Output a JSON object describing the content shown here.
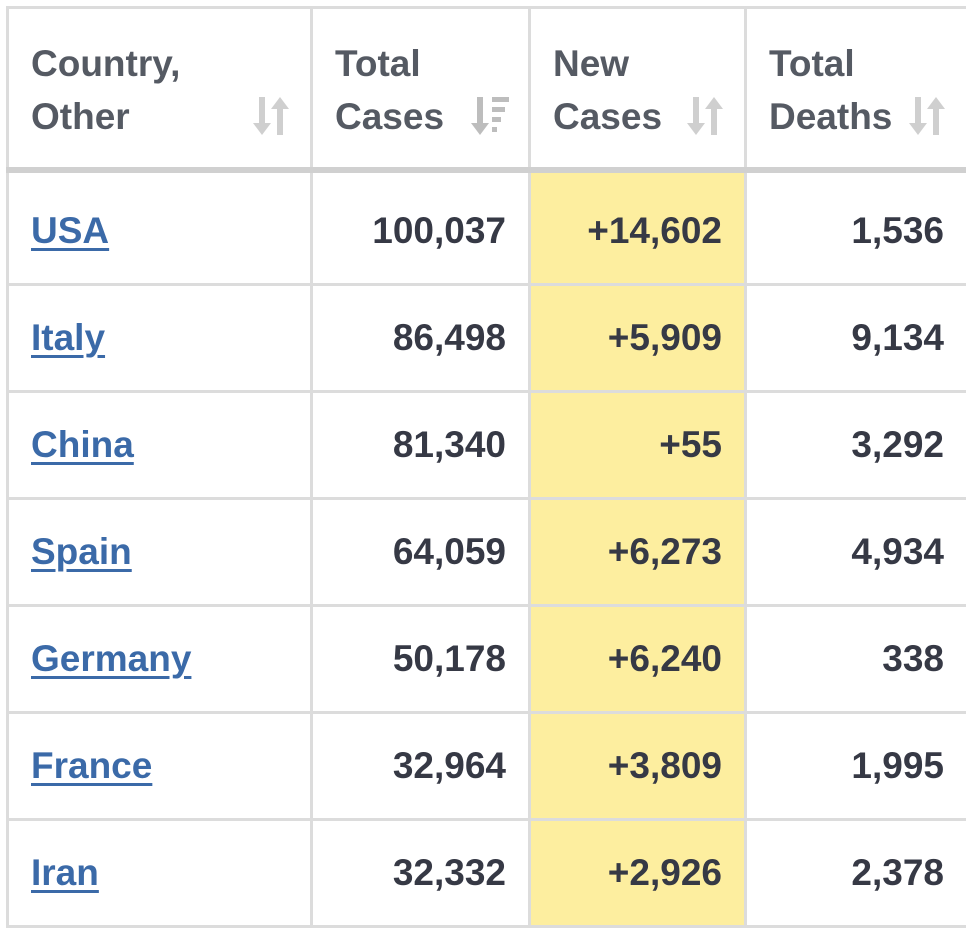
{
  "table": {
    "headers": [
      {
        "line1": "Country,",
        "line2": "Other",
        "sort_icon": "sort-neutral-icon"
      },
      {
        "line1": "Total",
        "line2": "Cases",
        "sort_icon": "sort-descending-icon"
      },
      {
        "line1": "New",
        "line2": "Cases",
        "sort_icon": "sort-neutral-icon"
      },
      {
        "line1": "Total",
        "line2": "Deaths",
        "sort_icon": "sort-neutral-icon"
      }
    ],
    "rows": [
      {
        "country": "USA",
        "total_cases": "100,037",
        "new_cases": "+14,602",
        "total_deaths": "1,536"
      },
      {
        "country": "Italy",
        "total_cases": "86,498",
        "new_cases": "+5,909",
        "total_deaths": "9,134"
      },
      {
        "country": "China",
        "total_cases": "81,340",
        "new_cases": "+55",
        "total_deaths": "3,292"
      },
      {
        "country": "Spain",
        "total_cases": "64,059",
        "new_cases": "+6,273",
        "total_deaths": "4,934"
      },
      {
        "country": "Germany",
        "total_cases": "50,178",
        "new_cases": "+6,240",
        "total_deaths": "338"
      },
      {
        "country": "France",
        "total_cases": "32,964",
        "new_cases": "+3,809",
        "total_deaths": "1,995"
      },
      {
        "country": "Iran",
        "total_cases": "32,332",
        "new_cases": "+2,926",
        "total_deaths": "2,378"
      }
    ]
  },
  "colors": {
    "link": "#3b6aa8",
    "new_cases_highlight": "#fdee9f",
    "text": "#363945",
    "grid": "#dcdcdc",
    "sort_icon": "#cfcfcf"
  }
}
